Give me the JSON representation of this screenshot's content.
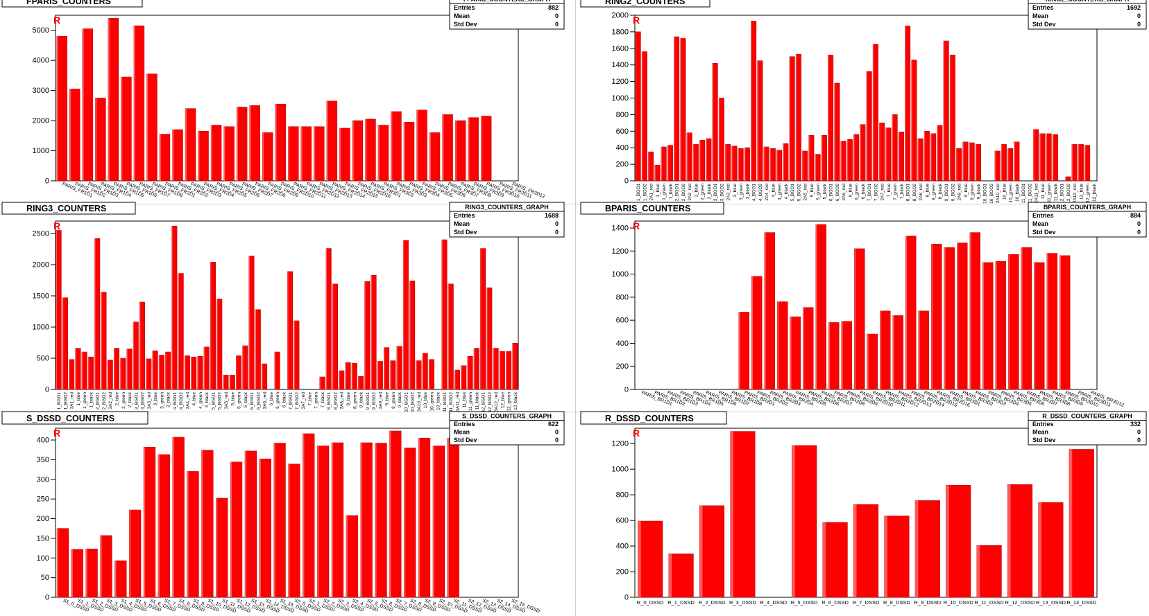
{
  "colors": {
    "bar": "#ff0000",
    "bar_edge": "#b00000",
    "bar_light": "#ff5a5a",
    "frame": "#000000",
    "background": "#ffffff"
  },
  "stats_labels": {
    "entries": "Entries",
    "mean": "Mean",
    "std": "Std Dev"
  },
  "corner_mark": "R",
  "chart_data": [
    {
      "type": "bar",
      "title": "FPARIS_COUNTERS",
      "graph_title": "FPARIS_COUNTERS_GRAPH",
      "stats": {
        "entries": "882",
        "mean": "0",
        "std": "0"
      },
      "ylim": [
        0,
        5500
      ],
      "yticks": [
        0,
        1000,
        2000,
        3000,
        4000,
        5000
      ],
      "label_rotation": -22,
      "categories": [
        "PARIS_FR1D1",
        "PARIS_FR1D2",
        "PARIS_FR1D3",
        "PARIS_FR1D4",
        "PARIS_FR1D5",
        "PARIS_FR1D6",
        "PARIS_FR1D7",
        "PARIS_FR1D8",
        "PARIS_FR2D1",
        "PARIS_FR2D2",
        "PARIS_FR2D3",
        "PARIS_FR2D4",
        "PARIS_FR2D5",
        "PARIS_FR2D6",
        "PARIS_FR2D7",
        "PARIS_FR2D8",
        "PARIS_FR2D9",
        "PARIS_FR2D10",
        "PARIS_FR2D11",
        "PARIS_FR2D12",
        "PARIS_FR2D13",
        "PARIS_FR2D14",
        "PARIS_FR2D15",
        "PARIS_FR2D16",
        "PARIS_FR3D1",
        "PARIS_FR3D2",
        "PARIS_FR3D3",
        "PARIS_FR3D4",
        "PARIS_FR3D5",
        "PARIS_FR3D6",
        "PARIS_FR3D7",
        "PARIS_FR3D8",
        "PARIS_FR3D9",
        "PARIS_FR3D10",
        "PARIS_FR3D11",
        "PARIS_FR3D12"
      ],
      "values": [
        4800,
        3050,
        5050,
        2750,
        5400,
        3450,
        5150,
        3550,
        1550,
        1700,
        2400,
        1650,
        1850,
        1800,
        2450,
        2500,
        1600,
        2550,
        1800,
        1800,
        1800,
        2650,
        1750,
        2000,
        2050,
        1850,
        2300,
        1950,
        2350,
        1600,
        2200,
        2000,
        2100,
        2150,
        null,
        null
      ]
    },
    {
      "type": "bar",
      "title": "RING2_COUNTERS",
      "graph_title": "RING2_COUNTERS_GRAPH",
      "stats": {
        "entries": "1692",
        "mean": "0",
        "std": "0"
      },
      "ylim": [
        0,
        2000
      ],
      "yticks": [
        0,
        200,
        400,
        600,
        800,
        1000,
        1200,
        1400,
        1600,
        1800,
        2000
      ],
      "label_rotation": -90,
      "categories": [
        "1_BGO1",
        "1_BGO2",
        "2A1_red",
        "1_blue",
        "1_green",
        "1_black",
        "2_BGO1",
        "2_BGO2",
        "2A2_red",
        "2_blue",
        "2_green",
        "2_black",
        "3_BGO1",
        "3_BGO2",
        "2A3_red",
        "3_blue",
        "3_green",
        "3_black",
        "4_BGO1",
        "4_BGO2",
        "2A4_red",
        "4_blue",
        "4_green",
        "4_black",
        "5_BGO1",
        "5_BGO2",
        "2A5_red",
        "5_blue",
        "5_green",
        "5_black",
        "6_BGO1",
        "6_BGO2",
        "2A6_red",
        "6_blue",
        "6_green",
        "6_black",
        "7_BGO1",
        "7_BGO2",
        "2A7_red",
        "7_blue",
        "7_green",
        "7_black",
        "8_BGO1",
        "8_BGO2",
        "2A8_red",
        "8_blue",
        "8_green",
        "8_black",
        "9_BGO1",
        "9_BGO2",
        "2A9_red",
        "9_blue",
        "9_green",
        "9_black",
        "10_BGO1",
        "10_BGO2",
        "2A10_red",
        "10_blue",
        "10_green",
        "10_black",
        "11_BGO1",
        "11_BGO2",
        "2A11_red",
        "11_blue",
        "11_green",
        "11_black",
        "12_BGO1",
        "12_BGO2",
        "2A12_red",
        "12_blue",
        "12_green",
        "12_black"
      ],
      "values": [
        1800,
        1560,
        350,
        190,
        410,
        430,
        1740,
        1720,
        580,
        440,
        490,
        510,
        1420,
        1000,
        440,
        420,
        390,
        400,
        1930,
        1450,
        410,
        390,
        370,
        450,
        1500,
        1530,
        360,
        550,
        320,
        550,
        1520,
        1180,
        480,
        500,
        560,
        680,
        1320,
        1650,
        700,
        640,
        800,
        590,
        1870,
        1460,
        510,
        600,
        570,
        670,
        1690,
        1520,
        390,
        470,
        460,
        440,
        null,
        null,
        360,
        440,
        390,
        470,
        null,
        null,
        620,
        570,
        570,
        560,
        null,
        50,
        440,
        440,
        430,
        null
      ]
    },
    {
      "type": "bar",
      "title": "RING3_COUNTERS",
      "graph_title": "RING3_COUNTERS_GRAPH",
      "stats": {
        "entries": "1688",
        "mean": "0",
        "std": "0"
      },
      "ylim": [
        0,
        2700
      ],
      "yticks": [
        0,
        500,
        1000,
        1500,
        2000,
        2500
      ],
      "label_rotation": -90,
      "categories": [
        "1_BGO1",
        "1_BGO2",
        "3A1_red",
        "1_blue",
        "1_green",
        "1_black",
        "2_BGO1",
        "2_BGO2",
        "3A2_red",
        "2_blue",
        "2_green",
        "2_black",
        "3_BGO1",
        "3_BGO2",
        "3A3_red",
        "3_blue",
        "3_green",
        "3_black",
        "4_BGO1",
        "4_BGO2",
        "3A4_red",
        "4_blue",
        "4_green",
        "4_black",
        "5_BGO1",
        "5_BGO2",
        "3A5_red",
        "5_blue",
        "5_green",
        "5_black",
        "6_BGO1",
        "6_BGO2",
        "3A6_red",
        "6_blue",
        "6_green",
        "6_black",
        "7_BGO1",
        "7_BGO2",
        "3A7_red",
        "7_blue",
        "7_green",
        "7_black",
        "8_BGO1",
        "8_BGO2",
        "3A8_red",
        "8_blue",
        "8_green",
        "8_black",
        "9_BGO1",
        "9_BGO2",
        "3A9_red",
        "9_blue",
        "9_green",
        "9_black",
        "10_BGO1",
        "10_BGO2",
        "3A10_red",
        "10_blue",
        "10_green",
        "10_black",
        "11_BGO1",
        "11_BGO2",
        "3A11_red",
        "11_blue",
        "11_green",
        "11_black",
        "12_BGO1",
        "12_BGO2",
        "3A12_red",
        "12_blue",
        "12_green",
        "12_black"
      ],
      "values": [
        2550,
        1470,
        480,
        660,
        600,
        520,
        2420,
        1560,
        470,
        660,
        500,
        650,
        1080,
        1400,
        490,
        620,
        550,
        600,
        2620,
        1860,
        540,
        520,
        530,
        680,
        2040,
        1450,
        230,
        230,
        540,
        700,
        2140,
        1280,
        410,
        null,
        600,
        null,
        1890,
        1100,
        null,
        null,
        null,
        200,
        2260,
        1690,
        300,
        430,
        420,
        210,
        1730,
        1830,
        450,
        670,
        460,
        690,
        2390,
        1740,
        460,
        580,
        480,
        null,
        2400,
        1690,
        310,
        380,
        530,
        660,
        2260,
        1630,
        660,
        610,
        610,
        740
      ]
    },
    {
      "type": "bar",
      "title": "BPARIS_COUNTERS",
      "graph_title": "BPARIS_COUNTERS_GRAPH",
      "stats": {
        "entries": "884",
        "mean": "0",
        "std": "0"
      },
      "ylim": [
        0,
        1460
      ],
      "yticks": [
        0,
        200,
        400,
        600,
        800,
        1000,
        1200,
        1400
      ],
      "label_rotation": -22,
      "categories": [
        "PARIS_BR1D1",
        "PARIS_BR1D2",
        "PARIS_BR1D3",
        "PARIS_BR1D4",
        "PARIS_BR1D5",
        "PARIS_BR1D6",
        "PARIS_BR1D7",
        "PARIS_BR1D8",
        "PARIS_BR2D1",
        "PARIS_BR2D2",
        "PARIS_BR2D3",
        "PARIS_BR2D4",
        "PARIS_BR2D5",
        "PARIS_BR2D6",
        "PARIS_BR2D7",
        "PARIS_BR2D8",
        "PARIS_BR2D9",
        "PARIS_BR2D10",
        "PARIS_BR2D11",
        "PARIS_BR2D12",
        "PARIS_BR2D13",
        "PARIS_BR2D14",
        "PARIS_BR2D15",
        "PARIS_BR2D16",
        "PARIS_BR3D1",
        "PARIS_BR3D2",
        "PARIS_BR3D3",
        "PARIS_BR3D4",
        "PARIS_BR3D5",
        "PARIS_BR3D6",
        "PARIS_BR3D7",
        "PARIS_BR3D8",
        "PARIS_BR3D9",
        "PARIS_BR3D10",
        "PARIS_BR3D11",
        "PARIS_BR3D12"
      ],
      "values": [
        null,
        null,
        null,
        null,
        null,
        null,
        null,
        null,
        670,
        980,
        1360,
        760,
        630,
        710,
        1430,
        580,
        590,
        1220,
        480,
        680,
        640,
        1330,
        680,
        1260,
        1230,
        1270,
        1360,
        1100,
        1110,
        1170,
        1230,
        1100,
        1180,
        1160,
        null,
        null
      ]
    },
    {
      "type": "bar",
      "title": "S_DSSD_COUNTERS",
      "graph_title": "S_DSSD_COUNTERS_GRAPH",
      "stats": {
        "entries": "622",
        "mean": "0",
        "std": "0"
      },
      "ylim": [
        0,
        430
      ],
      "yticks": [
        0,
        50,
        100,
        150,
        200,
        250,
        300,
        350,
        400
      ],
      "label_rotation": -22,
      "categories": [
        "S1_0_DSSD",
        "S1_1_DSSD",
        "S1_2_DSSD",
        "S1_3_DSSD",
        "S1_4_DSSD",
        "S1_5_DSSD",
        "S1_6_DSSD",
        "S1_7_DSSD",
        "S1_8_DSSD",
        "S1_9_DSSD",
        "S1_10_DSSD",
        "S1_11_DSSD",
        "S1_12_DSSD",
        "S1_13_DSSD",
        "S1_14_DSSD",
        "S1_15_DSSD",
        "S2_0_DSSD",
        "S2_1_DSSD",
        "S2_2_DSSD",
        "S2_3_DSSD",
        "S2_4_DSSD",
        "S2_5_DSSD",
        "S2_6_DSSD",
        "S2_7_DSSD",
        "S2_8_DSSD",
        "S2_9_DSSD",
        "S2_10_DSSD",
        "S2_11_DSSD",
        "S2_12_DSSD",
        "S2_13_DSSD",
        "S2_14_DSSD",
        "S2_15_DSSD"
      ],
      "values": [
        175,
        122,
        123,
        157,
        93,
        222,
        382,
        363,
        407,
        320,
        374,
        252,
        344,
        372,
        352,
        392,
        339,
        416,
        385,
        393,
        208,
        393,
        392,
        423,
        380,
        405,
        385,
        405,
        null,
        null,
        null,
        null
      ]
    },
    {
      "type": "bar",
      "title": "R_DSSD_COUNTERS",
      "graph_title": "R_DSSD_COUNTERS_GRAPH",
      "stats": {
        "entries": "332",
        "mean": "0",
        "std": "0"
      },
      "ylim": [
        0,
        1320
      ],
      "yticks": [
        0,
        200,
        400,
        600,
        800,
        1000,
        1200
      ],
      "label_rotation": 0,
      "categories": [
        "R_0_DSSD",
        "R_1_DSSD",
        "R_2_DSSD",
        "R_3_DSSD",
        "R_4_DSSD",
        "R_5_DSSD",
        "R_6_DSSD",
        "R_7_DSSD",
        "R_8_DSSD",
        "R_9_DSSD",
        "R_10_DSSD",
        "R_11_DSSD",
        "R_12_DSSD",
        "R_13_DSSD",
        "R_14_DSSD"
      ],
      "values": [
        595,
        340,
        715,
        1295,
        null,
        1185,
        585,
        725,
        635,
        755,
        875,
        405,
        880,
        740,
        1155
      ]
    }
  ]
}
